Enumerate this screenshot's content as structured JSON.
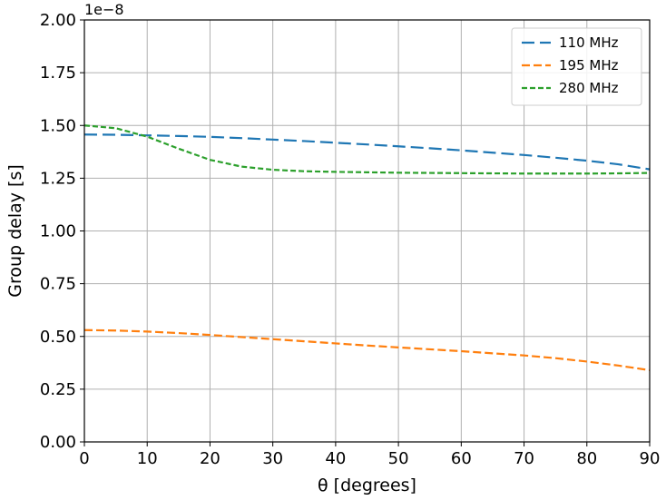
{
  "chart_data": {
    "type": "line",
    "xlabel": "θ [degrees]",
    "ylabel": "Group delay [s]",
    "y_offset_text": "1e−8",
    "xlim": [
      0,
      90
    ],
    "ylim": [
      0,
      2.0
    ],
    "x_ticks": [
      0,
      10,
      20,
      30,
      40,
      50,
      60,
      70,
      80,
      90
    ],
    "x_tick_labels": [
      "0",
      "10",
      "20",
      "30",
      "40",
      "50",
      "60",
      "70",
      "80",
      "90"
    ],
    "y_ticks": [
      0,
      0.25,
      0.5,
      0.75,
      1.0,
      1.25,
      1.5,
      1.75,
      2.0
    ],
    "y_tick_labels": [
      "0.00",
      "0.25",
      "0.50",
      "0.75",
      "1.00",
      "1.25",
      "1.50",
      "1.75",
      "2.00"
    ],
    "grid": true,
    "legend_position": "top-right",
    "x": [
      0,
      5,
      10,
      15,
      20,
      25,
      30,
      35,
      40,
      45,
      50,
      55,
      60,
      65,
      70,
      75,
      80,
      85,
      90
    ],
    "series": [
      {
        "name": "110 MHz",
        "color": "#1f77b4",
        "dash": "long-dash",
        "values": [
          1.457,
          1.456,
          1.453,
          1.45,
          1.446,
          1.44,
          1.433,
          1.426,
          1.418,
          1.41,
          1.401,
          1.392,
          1.382,
          1.371,
          1.36,
          1.347,
          1.333,
          1.316,
          1.292
        ]
      },
      {
        "name": "195 MHz",
        "color": "#ff7f0e",
        "dash": "dash",
        "values": [
          0.53,
          0.528,
          0.523,
          0.516,
          0.507,
          0.497,
          0.487,
          0.477,
          0.467,
          0.457,
          0.448,
          0.439,
          0.43,
          0.42,
          0.41,
          0.397,
          0.381,
          0.362,
          0.34
        ]
      },
      {
        "name": "280 MHz",
        "color": "#2ca02c",
        "dash": "short-dash",
        "values": [
          1.5,
          1.487,
          1.447,
          1.39,
          1.337,
          1.305,
          1.29,
          1.283,
          1.28,
          1.278,
          1.276,
          1.275,
          1.274,
          1.273,
          1.272,
          1.272,
          1.272,
          1.273,
          1.275
        ]
      }
    ]
  }
}
